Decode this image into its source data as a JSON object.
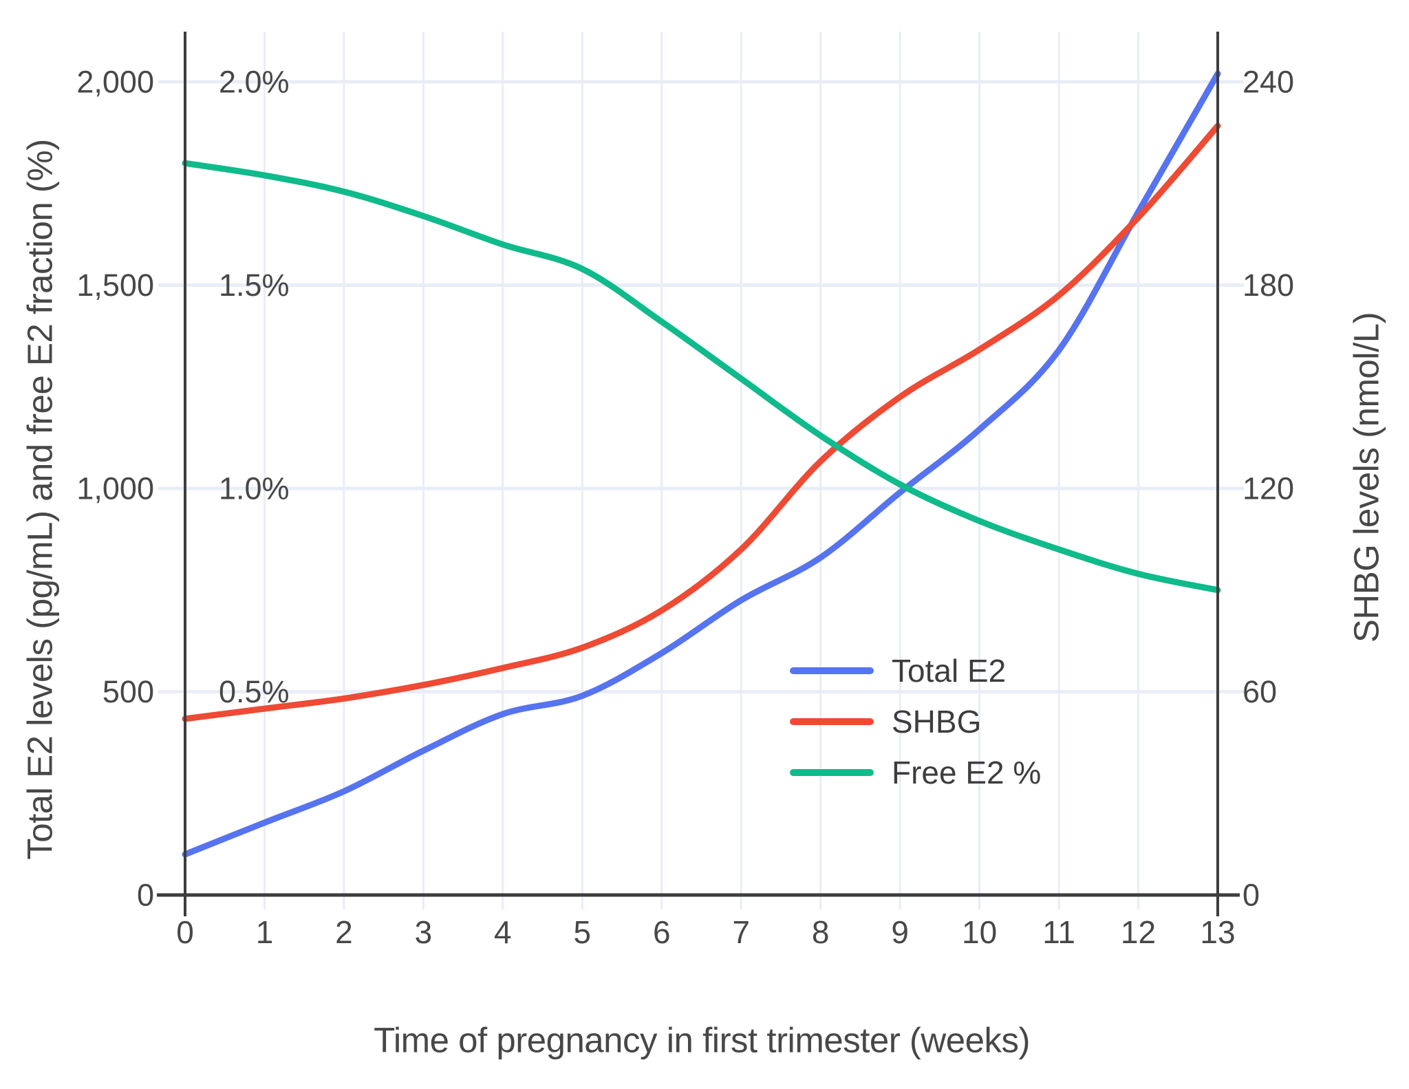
{
  "chart_data": {
    "type": "line",
    "x_title": "Time of pregnancy in first trimester (weeks)",
    "y_left_title": "Total E2 levels (pg/mL) and free E2 fraction (%)",
    "y_right_title": "SHBG levels (nmol/L)",
    "x": [
      0,
      1,
      2,
      3,
      4,
      5,
      6,
      7,
      8,
      9,
      10,
      11,
      12,
      13
    ],
    "x_range": [
      0,
      13
    ],
    "y_left_range": [
      0,
      2125
    ],
    "y_right_range": [
      0,
      255
    ],
    "grid": true,
    "legend_position": "center-right",
    "series": [
      {
        "name": "Total E2",
        "axis": "left",
        "units": "pg/mL",
        "color": "#5673f0",
        "values": [
          100,
          178,
          255,
          355,
          445,
          490,
          595,
          725,
          830,
          990,
          1145,
          1340,
          1680,
          2020
        ]
      },
      {
        "name": "SHBG",
        "axis": "right",
        "units": "nmol/L",
        "color": "#ee4a34",
        "values": [
          52,
          55,
          58,
          62,
          67,
          73,
          84,
          102,
          128,
          147,
          161,
          177,
          200,
          227
        ]
      },
      {
        "name": "Free E2 %",
        "axis": "left-percent",
        "units": "%",
        "values_note": "plotted against left axis where 0.5% = 500",
        "color": "#0fba8b",
        "values": [
          1.8,
          1.77,
          1.73,
          1.67,
          1.6,
          1.54,
          1.41,
          1.27,
          1.13,
          1.01,
          0.92,
          0.85,
          0.79,
          0.75
        ]
      }
    ],
    "left_ticks": [
      {
        "value": 0,
        "label": "0"
      },
      {
        "value": 500,
        "label": "500"
      },
      {
        "value": 1000,
        "label": "1,000"
      },
      {
        "value": 1500,
        "label": "1,500"
      },
      {
        "value": 2000,
        "label": "2,000"
      }
    ],
    "pct_ticks": [
      {
        "value": 500,
        "label": "0.5%"
      },
      {
        "value": 1000,
        "label": "1.0%"
      },
      {
        "value": 1500,
        "label": "1.5%"
      },
      {
        "value": 2000,
        "label": "2.0%"
      }
    ],
    "right_ticks": [
      {
        "value": 0,
        "label": "0"
      },
      {
        "value": 500,
        "label": "60"
      },
      {
        "value": 1000,
        "label": "120"
      },
      {
        "value": 1500,
        "label": "180"
      },
      {
        "value": 2000,
        "label": "240"
      }
    ],
    "x_ticks": [
      "0",
      "1",
      "2",
      "3",
      "4",
      "5",
      "6",
      "7",
      "8",
      "9",
      "10",
      "11",
      "12",
      "13"
    ]
  },
  "colors": {
    "background": "#ffffff",
    "gridline": "#e8edf7",
    "axis_line": "#3d3d3d",
    "tick_text": "#474747",
    "total_e2": "#5673f0",
    "shbg": "#ee4a34",
    "free_e2": "#0fba8b"
  }
}
